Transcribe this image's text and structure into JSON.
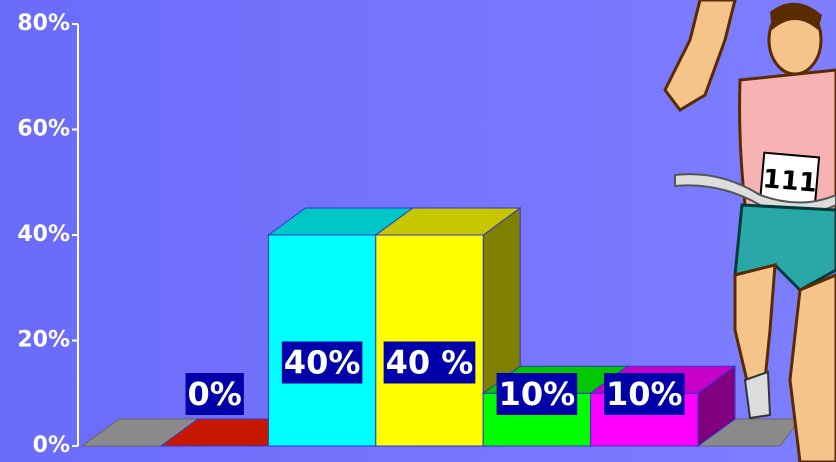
{
  "chart_data": {
    "type": "bar3d",
    "categories": [
      null,
      null,
      null,
      null,
      null
    ],
    "values": [
      0,
      40,
      40,
      10,
      10
    ],
    "value_labels": [
      "0%",
      "40%",
      "40 %",
      "10%",
      "10%"
    ],
    "colors": [
      "#ff2000",
      "#00ffff",
      "#ffff00",
      "#00ff00",
      "#ff00ff"
    ],
    "ylim": [
      0,
      80
    ],
    "yticks": [
      {
        "value": 0,
        "label": "0%"
      },
      {
        "value": 20,
        "label": "20%"
      },
      {
        "value": 40,
        "label": "40%"
      },
      {
        "value": 60,
        "label": "60%"
      },
      {
        "value": 80,
        "label": "80%"
      }
    ]
  }
}
